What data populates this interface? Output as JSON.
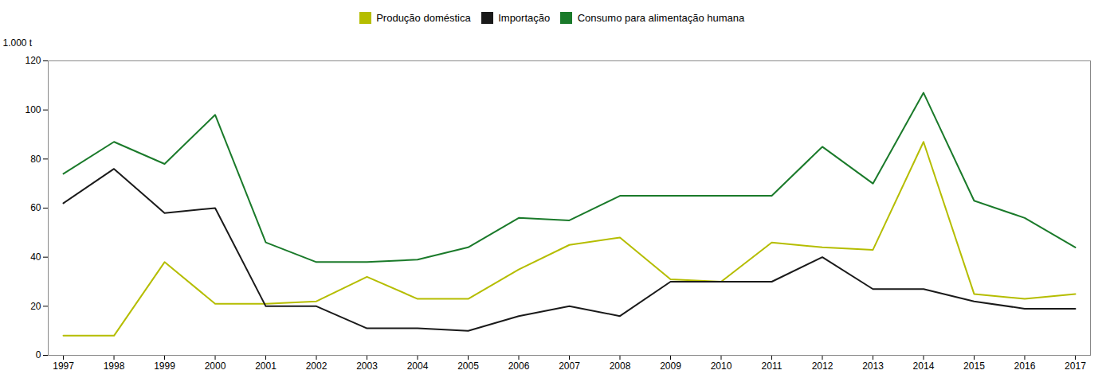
{
  "chart_data": {
    "type": "line",
    "x": [
      1997,
      1998,
      1999,
      2000,
      2001,
      2002,
      2003,
      2004,
      2005,
      2006,
      2007,
      2008,
      2009,
      2010,
      2011,
      2012,
      2013,
      2014,
      2015,
      2016,
      2017
    ],
    "series": [
      {
        "name": "Produção doméstica",
        "color": "#b5bd00",
        "values": [
          8,
          8,
          38,
          21,
          21,
          22,
          32,
          23,
          23,
          35,
          45,
          48,
          31,
          30,
          46,
          44,
          43,
          87,
          25,
          23,
          25
        ]
      },
      {
        "name": "Importação",
        "color": "#1a1a1a",
        "values": [
          62,
          76,
          58,
          60,
          20,
          20,
          11,
          11,
          10,
          16,
          20,
          16,
          30,
          30,
          30,
          40,
          27,
          27,
          22,
          19,
          19
        ]
      },
      {
        "name": "Consumo para alimentação humana",
        "color": "#1a7a2a",
        "values": [
          74,
          87,
          78,
          98,
          46,
          38,
          38,
          39,
          44,
          56,
          55,
          65,
          65,
          65,
          65,
          85,
          70,
          107,
          63,
          56,
          44
        ]
      }
    ],
    "xlim": [
      1996.7,
      2017.3
    ],
    "xticks": [
      1997,
      1998,
      1999,
      2000,
      2001,
      2002,
      2003,
      2004,
      2005,
      2006,
      2007,
      2008,
      2009,
      2010,
      2011,
      2012,
      2013,
      2014,
      2015,
      2016,
      2017
    ],
    "ylim": [
      0,
      120
    ],
    "yticks": [
      0,
      20,
      40,
      60,
      80,
      100,
      120
    ],
    "ylabel": "1.000 t",
    "grid": false,
    "legend": "top"
  }
}
